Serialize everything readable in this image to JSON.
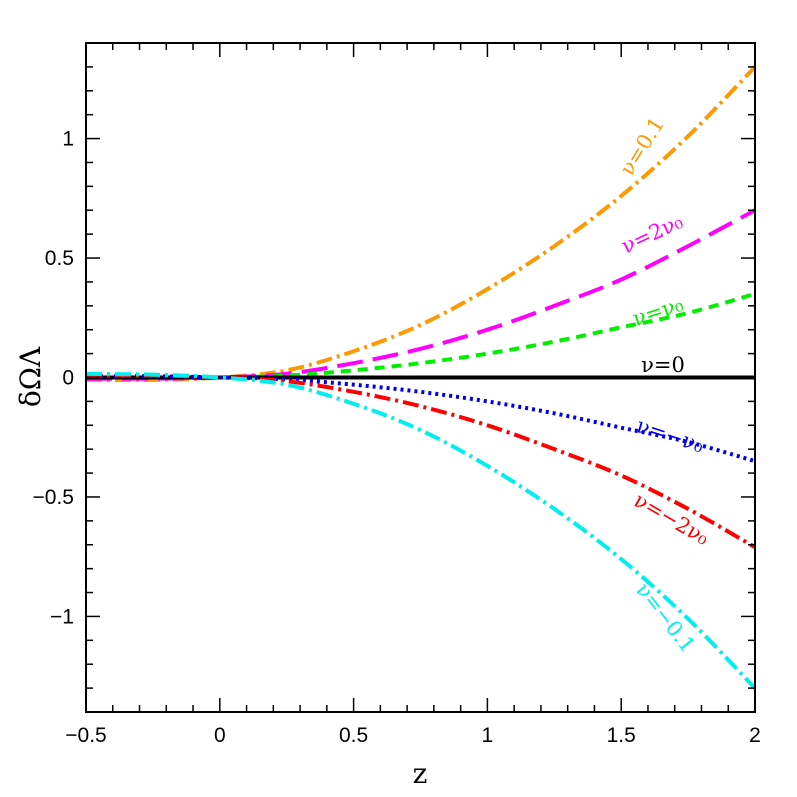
{
  "chart_data": {
    "type": "line",
    "title": "",
    "xlabel": "z",
    "ylabel": "δΩΛ",
    "xlim": [
      -0.5,
      2
    ],
    "ylim": [
      -1.4,
      1.4
    ],
    "grid": false,
    "x_ticks": [
      "-0.5",
      "0",
      "0.5",
      "1",
      "1.5",
      "2"
    ],
    "y_ticks": [
      "-1",
      "-0.5",
      "0",
      "0.5",
      "1"
    ],
    "x": [
      -0.5,
      -0.25,
      0,
      0.25,
      0.5,
      0.75,
      1,
      1.25,
      1.5,
      1.75,
      2
    ],
    "series": [
      {
        "name": "ν=0.1",
        "color": "#ff9900",
        "style": "dash-dot",
        "values": [
          -0.01,
          -0.01,
          0,
          0.03,
          0.11,
          0.22,
          0.37,
          0.55,
          0.76,
          1.01,
          1.3
        ]
      },
      {
        "name": "ν=2ν₀",
        "color": "#ff00ff",
        "style": "long-dash",
        "values": [
          -0.005,
          -0.005,
          0,
          0.016,
          0.06,
          0.12,
          0.2,
          0.3,
          0.41,
          0.55,
          0.7
        ]
      },
      {
        "name": "ν=ν₀",
        "color": "#00ee00",
        "style": "short-dash",
        "values": [
          0,
          0,
          0,
          0.008,
          0.03,
          0.06,
          0.1,
          0.15,
          0.21,
          0.27,
          0.35
        ]
      },
      {
        "name": "ν=0",
        "color": "#000000",
        "style": "solid",
        "values": [
          0,
          0,
          0,
          0,
          0,
          0,
          0,
          0,
          0,
          0,
          0
        ]
      },
      {
        "name": "ν=−ν₀",
        "color": "#0000ee",
        "style": "dotted",
        "values": [
          0.005,
          0.005,
          0,
          -0.008,
          -0.03,
          -0.06,
          -0.1,
          -0.15,
          -0.21,
          -0.27,
          -0.35
        ]
      },
      {
        "name": "ν=−2ν₀",
        "color": "#ff0000",
        "style": "dash-dot",
        "values": [
          0.008,
          0.008,
          0,
          -0.016,
          -0.06,
          -0.12,
          -0.2,
          -0.3,
          -0.41,
          -0.55,
          -0.71
        ]
      },
      {
        "name": "ν=−0.1",
        "color": "#00eeee",
        "style": "dash-dot",
        "values": [
          0.015,
          0.012,
          0,
          -0.03,
          -0.11,
          -0.22,
          -0.37,
          -0.55,
          -0.76,
          -1.01,
          -1.3
        ]
      }
    ]
  }
}
